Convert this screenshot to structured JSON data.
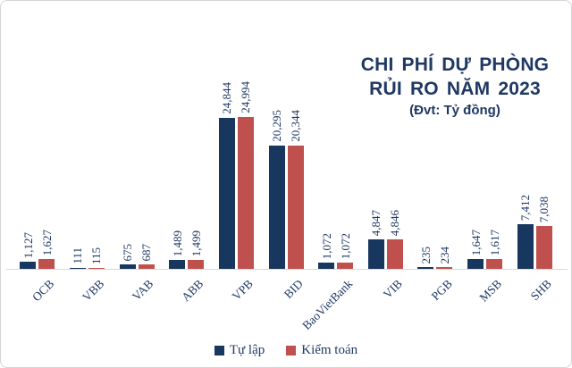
{
  "title": {
    "line1": "CHI PHÍ DỰ PHÒNG",
    "line2": "RỦI RO NĂM 2023",
    "unit": "(Đvt: Tỷ đồng)"
  },
  "legend": [
    {
      "label": "Tự lập",
      "color": "#17375e"
    },
    {
      "label": "Kiểm toán",
      "color": "#c0504d"
    }
  ],
  "colors": {
    "navy": "#17375e",
    "red": "#c0504d",
    "text": "#1f3864",
    "axis": "#d9d9d9"
  },
  "chart_data": {
    "type": "bar",
    "title": "CHI PHÍ DỰ PHÒNG RỦI RO NĂM 2023",
    "unit": "Tỷ đồng",
    "categories": [
      "OCB",
      "VBB",
      "VAB",
      "ABB",
      "VPB",
      "BID",
      "BaoVietBank",
      "VIB",
      "PGB",
      "MSB",
      "SHB"
    ],
    "series": [
      {
        "name": "Tự lập",
        "values": [
          1127,
          111,
          675,
          1489,
          24844,
          20295,
          1072,
          4847,
          235,
          1647,
          7412
        ],
        "labels": [
          "1,127",
          "111",
          "675",
          "1,489",
          "24,844",
          "20,295",
          "1,072",
          "4,847",
          "235",
          "1,647",
          "7,412"
        ]
      },
      {
        "name": "Kiểm toán",
        "values": [
          1627,
          115,
          687,
          1499,
          24994,
          20344,
          1072,
          4846,
          234,
          1617,
          7038
        ],
        "labels": [
          "1,627",
          "115",
          "687",
          "1,499",
          "24,994",
          "20,344",
          "1,072",
          "4,846",
          "234",
          "1,617",
          "7,038"
        ]
      }
    ],
    "ylim": [
      0,
      25000
    ],
    "grid": false,
    "y_axis_visible": false,
    "data_labels": "rotated-90",
    "category_labels": "rotated-45",
    "legend_position": "bottom"
  }
}
